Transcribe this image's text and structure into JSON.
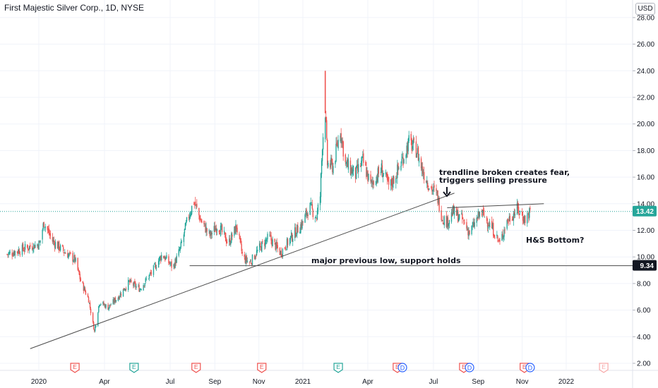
{
  "header": {
    "title": "First Majestic Silver Corp., 1D, NYSE",
    "currency": "USD"
  },
  "colors": {
    "up": "#26a69a",
    "down": "#ef5350",
    "price_line": "#26a69a",
    "support_label_bg": "#131722"
  },
  "price_tags": {
    "current": "13.42",
    "support": "9.34"
  },
  "annotations": {
    "trendline_note_line1": "trendline broken creates fear,",
    "trendline_note_line2": "triggers selling pressure",
    "support_note": "major previous low, support holds",
    "pattern_note": "H&S Bottom?"
  },
  "event_markers": [
    {
      "date": "2020-02-20",
      "label": "E",
      "kind": "earnings"
    },
    {
      "date": "2020-05-12",
      "label": "E",
      "kind": "earnings-green"
    },
    {
      "date": "2020-08-06",
      "label": "E",
      "kind": "earnings"
    },
    {
      "date": "2020-11-05",
      "label": "E",
      "kind": "earnings"
    },
    {
      "date": "2021-02-19",
      "label": "E",
      "kind": "earnings-green"
    },
    {
      "date": "2021-05-12",
      "label": "E",
      "kind": "earnings"
    },
    {
      "date": "2021-05-19",
      "label": "D",
      "kind": "dividend"
    },
    {
      "date": "2021-08-12",
      "label": "E",
      "kind": "earnings"
    },
    {
      "date": "2021-08-20",
      "label": "D",
      "kind": "dividend"
    },
    {
      "date": "2021-11-04",
      "label": "E",
      "kind": "earnings"
    },
    {
      "date": "2021-11-12",
      "label": "D",
      "kind": "dividend"
    },
    {
      "date": "2022-02-22",
      "label": "E",
      "kind": "earnings-future"
    }
  ],
  "chart_data": {
    "type": "candlestick",
    "title": "First Majestic Silver Corp., 1D, NYSE",
    "xlabel": "",
    "ylabel": "",
    "x_ticks": [
      "2020",
      "Apr",
      "Jul",
      "Sep",
      "Nov",
      "2021",
      "Apr",
      "Jul",
      "Sep",
      "Nov",
      "2022"
    ],
    "y_ticks": [
      "2.00",
      "4.00",
      "6.00",
      "8.00",
      "10.00",
      "12.00",
      "14.00",
      "16.00",
      "18.00",
      "20.00",
      "22.00",
      "24.00",
      "26.00",
      "28.00"
    ],
    "ylim": [
      1.5,
      29
    ],
    "grid": true,
    "price_path": [
      [
        "2019-11-18",
        10.2
      ],
      [
        "2019-12-10",
        10.6
      ],
      [
        "2020-01-02",
        11.0
      ],
      [
        "2020-01-08",
        12.6
      ],
      [
        "2020-01-20",
        11.2
      ],
      [
        "2020-02-05",
        10.4
      ],
      [
        "2020-02-20",
        9.8
      ],
      [
        "2020-02-28",
        8.2
      ],
      [
        "2020-03-10",
        6.8
      ],
      [
        "2020-03-18",
        4.4
      ],
      [
        "2020-03-25",
        6.6
      ],
      [
        "2020-04-06",
        6.2
      ],
      [
        "2020-04-20",
        7.0
      ],
      [
        "2020-05-05",
        8.1
      ],
      [
        "2020-05-20",
        7.6
      ],
      [
        "2020-06-05",
        8.8
      ],
      [
        "2020-06-20",
        10.2
      ],
      [
        "2020-07-05",
        9.2
      ],
      [
        "2020-07-15",
        10.6
      ],
      [
        "2020-07-25",
        12.8
      ],
      [
        "2020-08-03",
        14.2
      ],
      [
        "2020-08-12",
        12.8
      ],
      [
        "2020-08-25",
        11.6
      ],
      [
        "2020-09-05",
        12.4
      ],
      [
        "2020-09-20",
        11.0
      ],
      [
        "2020-10-01",
        12.3
      ],
      [
        "2020-10-10",
        9.9
      ],
      [
        "2020-10-20",
        9.6
      ],
      [
        "2020-11-01",
        10.6
      ],
      [
        "2020-11-15",
        11.5
      ],
      [
        "2020-12-01",
        10.3
      ],
      [
        "2020-12-15",
        11.4
      ],
      [
        "2021-01-01",
        12.6
      ],
      [
        "2021-01-10",
        13.8
      ],
      [
        "2021-01-20",
        13.0
      ],
      [
        "2021-01-25",
        14.6
      ],
      [
        "2021-01-28",
        18.6
      ],
      [
        "2021-02-01",
        21.0
      ],
      [
        "2021-02-04",
        17.0
      ],
      [
        "2021-02-12",
        16.8
      ],
      [
        "2021-02-22",
        19.6
      ],
      [
        "2021-03-01",
        17.0
      ],
      [
        "2021-03-15",
        16.2
      ],
      [
        "2021-03-25",
        17.2
      ],
      [
        "2021-04-05",
        15.4
      ],
      [
        "2021-04-20",
        16.6
      ],
      [
        "2021-05-01",
        15.2
      ],
      [
        "2021-05-15",
        16.8
      ],
      [
        "2021-05-28",
        18.6
      ],
      [
        "2021-06-08",
        18.0
      ],
      [
        "2021-06-15",
        16.6
      ],
      [
        "2021-06-25",
        15.4
      ],
      [
        "2021-07-06",
        14.6
      ],
      [
        "2021-07-13",
        13.0
      ],
      [
        "2021-07-20",
        12.6
      ],
      [
        "2021-07-28",
        13.4
      ],
      [
        "2021-08-10",
        12.8
      ],
      [
        "2021-08-20",
        11.8
      ],
      [
        "2021-09-05",
        13.4
      ],
      [
        "2021-09-20",
        12.2
      ],
      [
        "2021-10-01",
        11.0
      ],
      [
        "2021-10-10",
        12.6
      ],
      [
        "2021-10-25",
        13.6
      ],
      [
        "2021-11-05",
        12.8
      ],
      [
        "2021-11-12",
        13.42
      ]
    ],
    "spike": {
      "date": "2021-02-01",
      "high": 24.0,
      "low": 20.8
    },
    "trendline": {
      "start": [
        "2019-12-20",
        3.1
      ],
      "end": [
        "2021-07-30",
        14.8
      ]
    },
    "neckline": {
      "start": [
        "2021-07-20",
        13.7
      ],
      "end": [
        "2021-12-01",
        14.0
      ]
    },
    "support_level": 9.34,
    "current_price": 13.42
  }
}
